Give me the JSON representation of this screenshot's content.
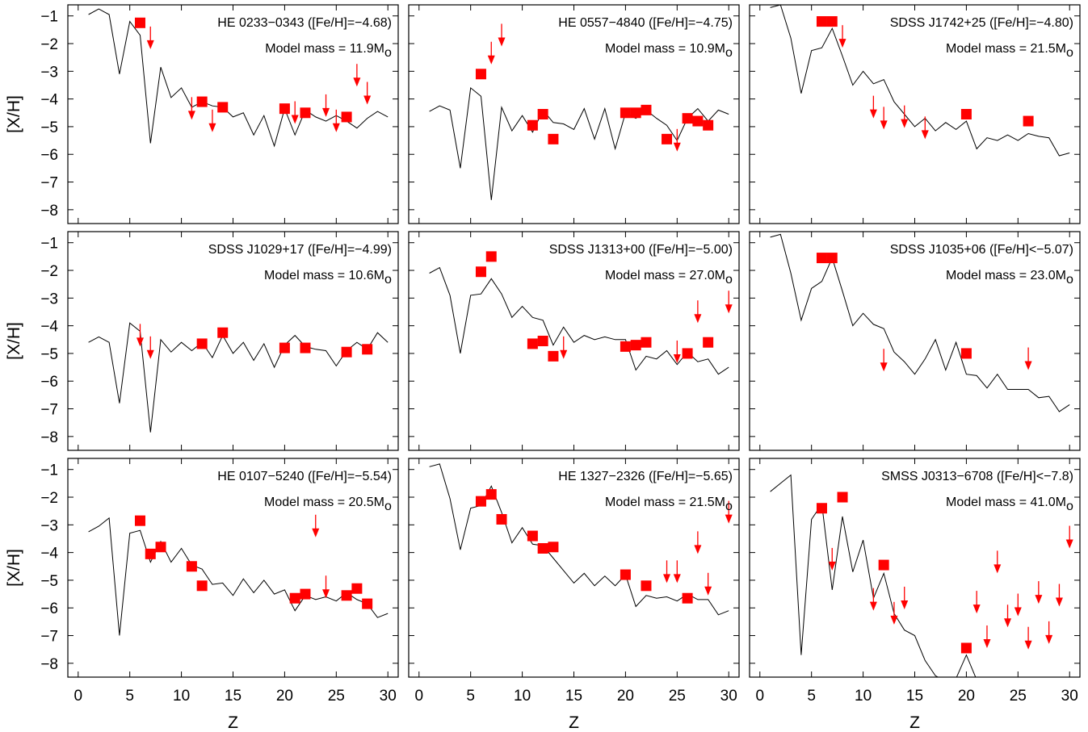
{
  "figure": {
    "xlabel": "Z",
    "ylabel": "[X/H]",
    "xlim": [
      -1,
      31
    ],
    "ylim": [
      -8.5,
      -0.6
    ],
    "xticks": [
      "0",
      "5",
      "10",
      "15",
      "20",
      "25",
      "30"
    ],
    "yticks": [
      "-1",
      "-2",
      "-3",
      "-4",
      "-5",
      "-6",
      "-7",
      "-8"
    ],
    "marker_color": "#ff0000",
    "line_color": "#000000"
  },
  "chart_data": [
    {
      "type": "scatter",
      "star": "HE 0233−0343 ([Fe/H]=−4.68)",
      "mass_prefix": "Model mass = 11.9M",
      "mass_sub": "o",
      "model_line": {
        "x": [
          1,
          2,
          3,
          4,
          5,
          6,
          7,
          8,
          9,
          10,
          11,
          12,
          13,
          14,
          15,
          16,
          17,
          18,
          19,
          20,
          21,
          22,
          23,
          24,
          25,
          26,
          27,
          28,
          29,
          30
        ],
        "y": [
          -0.95,
          -0.75,
          -0.95,
          -3.1,
          -1.2,
          -1.7,
          -5.6,
          -2.85,
          -3.95,
          -3.6,
          -4.3,
          -4.1,
          -4.25,
          -4.3,
          -4.65,
          -4.5,
          -5.3,
          -4.6,
          -5.7,
          -4.35,
          -5.3,
          -4.4,
          -4.65,
          -4.8,
          -4.6,
          -4.8,
          -5.05,
          -4.7,
          -4.45,
          -4.65
        ]
      },
      "detections": {
        "x": [
          6,
          12,
          14,
          20,
          22,
          26
        ],
        "y": [
          -1.25,
          -4.1,
          -4.3,
          -4.35,
          -4.5,
          -4.65
        ]
      },
      "upper_limits": {
        "x": [
          7,
          11,
          13,
          21,
          24,
          25,
          27,
          28
        ],
        "y": [
          -2.2,
          -4.75,
          -5.2,
          -4.9,
          -4.65,
          -5.2,
          -3.55,
          -4.2
        ]
      }
    },
    {
      "type": "scatter",
      "star": "HE 0557−4840 ([Fe/H]=−4.75)",
      "mass_prefix": "Model mass = 10.9M",
      "mass_sub": "o",
      "model_line": {
        "x": [
          1,
          2,
          3,
          4,
          5,
          6,
          7,
          8,
          9,
          10,
          11,
          12,
          13,
          14,
          15,
          16,
          17,
          18,
          19,
          20,
          21,
          22,
          23,
          24,
          25,
          26,
          27,
          28,
          29,
          30
        ],
        "y": [
          -4.45,
          -4.25,
          -4.4,
          -6.5,
          -3.6,
          -3.9,
          -7.65,
          -4.3,
          -5.15,
          -4.6,
          -5.2,
          -4.4,
          -4.85,
          -4.9,
          -5.1,
          -4.35,
          -5.45,
          -4.35,
          -5.8,
          -4.5,
          -4.7,
          -4.4,
          -4.7,
          -4.95,
          -5.5,
          -4.7,
          -4.35,
          -4.8,
          -4.4,
          -4.55
        ]
      },
      "detections": {
        "x": [
          6,
          11,
          12,
          13,
          20,
          21,
          22,
          24,
          26,
          27,
          28
        ],
        "y": [
          -3.1,
          -4.95,
          -4.55,
          -5.45,
          -4.5,
          -4.5,
          -4.4,
          -5.45,
          -4.7,
          -4.8,
          -4.95
        ]
      },
      "upper_limits": {
        "x": [
          7,
          8,
          25
        ],
        "y": [
          -2.75,
          -2.1,
          -5.9
        ]
      }
    },
    {
      "type": "scatter",
      "star": "SDSS J1742+25 ([Fe/H]=−4.80)",
      "mass_prefix": "Model mass = 21.5M",
      "mass_sub": "o",
      "model_line": {
        "x": [
          1,
          2,
          3,
          4,
          5,
          6,
          7,
          8,
          9,
          10,
          11,
          12,
          13,
          14,
          15,
          16,
          17,
          18,
          19,
          20,
          21,
          22,
          23,
          24,
          25,
          26,
          27,
          28,
          29,
          30
        ],
        "y": [
          -0.7,
          -0.6,
          -1.8,
          -3.8,
          -2.25,
          -2.15,
          -1.45,
          -2.45,
          -3.5,
          -3.0,
          -3.45,
          -3.3,
          -4.1,
          -4.55,
          -5.0,
          -4.7,
          -5.15,
          -4.85,
          -5.1,
          -4.8,
          -5.8,
          -5.4,
          -5.5,
          -5.3,
          -5.5,
          -5.25,
          -5.35,
          -5.4,
          -6.05,
          -5.95
        ]
      },
      "detections": {
        "x": [
          6,
          7,
          20,
          26
        ],
        "y": [
          -1.2,
          -1.2,
          -4.55,
          -4.8
        ]
      },
      "upper_limits": {
        "x": [
          8,
          11,
          12,
          14,
          16
        ],
        "y": [
          -2.15,
          -4.7,
          -5.1,
          -5.05,
          -5.45
        ]
      }
    },
    {
      "type": "scatter",
      "star": "SDSS J1029+17 ([Fe/H]=−4.99)",
      "mass_prefix": "Model mass = 10.6M",
      "mass_sub": "o",
      "model_line": {
        "x": [
          1,
          2,
          3,
          4,
          5,
          6,
          7,
          8,
          9,
          10,
          11,
          12,
          13,
          14,
          15,
          16,
          17,
          18,
          19,
          20,
          21,
          22,
          23,
          24,
          25,
          26,
          27,
          28,
          29,
          30
        ],
        "y": [
          -4.6,
          -4.4,
          -4.6,
          -6.8,
          -3.9,
          -4.2,
          -7.85,
          -4.5,
          -4.95,
          -4.6,
          -4.9,
          -4.6,
          -5.15,
          -4.35,
          -5.0,
          -4.6,
          -5.25,
          -4.65,
          -5.5,
          -4.7,
          -4.35,
          -4.75,
          -4.85,
          -4.9,
          -5.45,
          -4.9,
          -4.6,
          -4.85,
          -4.25,
          -4.6
        ]
      },
      "detections": {
        "x": [
          12,
          14,
          20,
          22,
          26,
          28
        ],
        "y": [
          -4.65,
          -4.25,
          -4.8,
          -4.8,
          -4.95,
          -4.85
        ]
      },
      "upper_limits": {
        "x": [
          6,
          7
        ],
        "y": [
          -4.75,
          -5.2
        ]
      }
    },
    {
      "type": "scatter",
      "star": "SDSS J1313+00 ([Fe/H]=−5.00)",
      "mass_prefix": "Model mass = 27.0M",
      "mass_sub": "o",
      "model_line": {
        "x": [
          1,
          2,
          3,
          4,
          5,
          6,
          7,
          8,
          9,
          10,
          11,
          12,
          13,
          14,
          15,
          16,
          17,
          18,
          19,
          20,
          21,
          22,
          23,
          24,
          25,
          26,
          27,
          28,
          29,
          30
        ],
        "y": [
          -2.1,
          -1.9,
          -2.9,
          -5.0,
          -2.9,
          -2.85,
          -2.3,
          -2.85,
          -3.7,
          -3.3,
          -3.7,
          -3.8,
          -4.7,
          -4.05,
          -4.6,
          -4.35,
          -4.5,
          -4.4,
          -4.5,
          -4.5,
          -5.6,
          -5.1,
          -5.2,
          -4.9,
          -5.4,
          -4.95,
          -5.3,
          -5.2,
          -5.75,
          -5.5
        ]
      },
      "detections": {
        "x": [
          6,
          7,
          11,
          12,
          13,
          20,
          21,
          22,
          26,
          28
        ],
        "y": [
          -2.05,
          -1.5,
          -4.65,
          -4.55,
          -5.1,
          -4.75,
          -4.7,
          -4.6,
          -5.0,
          -4.6
        ]
      },
      "upper_limits": {
        "x": [
          14,
          25,
          27,
          30
        ],
        "y": [
          -5.2,
          -5.35,
          -3.9,
          -3.55
        ]
      }
    },
    {
      "type": "scatter",
      "star": "SDSS J1035+06 ([Fe/H]<−5.07)",
      "mass_prefix": "Model mass = 23.0M",
      "mass_sub": "o",
      "model_line": {
        "x": [
          1,
          2,
          3,
          4,
          5,
          6,
          7,
          8,
          9,
          10,
          11,
          12,
          13,
          14,
          15,
          16,
          17,
          18,
          19,
          20,
          21,
          22,
          23,
          24,
          25,
          26,
          27,
          28,
          29,
          30
        ],
        "y": [
          -0.8,
          -0.7,
          -2.1,
          -3.8,
          -2.65,
          -2.4,
          -1.55,
          -2.75,
          -4.0,
          -3.55,
          -3.95,
          -4.1,
          -4.95,
          -5.3,
          -5.75,
          -5.2,
          -4.5,
          -5.6,
          -4.6,
          -5.75,
          -5.8,
          -6.25,
          -5.75,
          -6.3,
          -6.3,
          -6.3,
          -6.6,
          -6.55,
          -7.1,
          -6.85
        ]
      },
      "detections": {
        "x": [
          6,
          7,
          20
        ],
        "y": [
          -1.55,
          -1.55,
          -5.0
        ]
      },
      "upper_limits": {
        "x": [
          12,
          26
        ],
        "y": [
          -5.65,
          -5.6
        ]
      }
    },
    {
      "type": "scatter",
      "star": "HE 0107−5240 ([Fe/H]=−5.54)",
      "mass_prefix": "Model mass = 20.5M",
      "mass_sub": "o",
      "model_line": {
        "x": [
          1,
          2,
          3,
          4,
          5,
          6,
          7,
          8,
          9,
          10,
          11,
          12,
          13,
          14,
          15,
          16,
          17,
          18,
          19,
          20,
          21,
          22,
          23,
          24,
          25,
          26,
          27,
          28,
          29,
          30
        ],
        "y": [
          -3.25,
          -3.05,
          -2.75,
          -7.0,
          -3.3,
          -3.2,
          -4.35,
          -3.6,
          -4.35,
          -3.85,
          -4.45,
          -4.6,
          -5.15,
          -5.1,
          -5.55,
          -4.95,
          -5.45,
          -5.0,
          -5.5,
          -5.35,
          -6.1,
          -5.55,
          -5.7,
          -5.6,
          -5.75,
          -5.45,
          -5.7,
          -5.85,
          -6.35,
          -6.2
        ]
      },
      "detections": {
        "x": [
          6,
          7,
          8,
          11,
          12,
          21,
          22,
          26,
          27,
          28
        ],
        "y": [
          -2.85,
          -4.05,
          -3.8,
          -4.5,
          -5.2,
          -5.65,
          -5.5,
          -5.55,
          -5.3,
          -5.85
        ]
      },
      "upper_limits": {
        "x": [
          23,
          24
        ],
        "y": [
          -3.45,
          -5.65
        ]
      }
    },
    {
      "type": "scatter",
      "star": "HE 1327−2326 ([Fe/H]=−5.65)",
      "mass_prefix": "Model mass = 21.5M",
      "mass_sub": "o",
      "model_line": {
        "x": [
          1,
          2,
          3,
          4,
          5,
          6,
          7,
          8,
          9,
          10,
          11,
          12,
          13,
          14,
          15,
          16,
          17,
          18,
          19,
          20,
          21,
          22,
          23,
          24,
          25,
          26,
          27,
          28,
          29,
          30
        ],
        "y": [
          -0.9,
          -0.8,
          -2.05,
          -3.9,
          -2.4,
          -2.3,
          -1.6,
          -2.55,
          -3.65,
          -3.1,
          -3.7,
          -3.75,
          -4.2,
          -4.65,
          -5.1,
          -4.75,
          -5.2,
          -4.85,
          -5.2,
          -4.8,
          -5.95,
          -5.55,
          -5.65,
          -5.6,
          -5.75,
          -5.5,
          -5.7,
          -5.7,
          -6.25,
          -6.1
        ]
      },
      "detections": {
        "x": [
          6,
          7,
          8,
          11,
          12,
          13,
          20,
          22,
          26
        ],
        "y": [
          -2.15,
          -1.9,
          -2.8,
          -3.4,
          -3.85,
          -3.8,
          -4.8,
          -5.2,
          -5.65
        ]
      },
      "upper_limits": {
        "x": [
          24,
          25,
          27,
          28,
          30
        ],
        "y": [
          -5.1,
          -5.1,
          -4.05,
          -5.55,
          -2.95
        ]
      }
    },
    {
      "type": "scatter",
      "star": "SMSS J0313−6708 ([Fe/H]<−7.8)",
      "mass_prefix": "Model mass = 41.0M",
      "mass_sub": "o",
      "model_line": {
        "x": [
          1,
          2,
          3,
          4,
          5,
          6,
          7,
          8,
          9,
          10,
          11,
          12,
          13,
          14,
          15,
          16,
          17,
          18,
          19,
          20,
          21
        ],
        "y": [
          -1.8,
          -1.5,
          -1.2,
          -7.7,
          -2.8,
          -2.25,
          -5.35,
          -2.7,
          -4.7,
          -3.55,
          -5.65,
          -4.75,
          -6.2,
          -6.8,
          -7.0,
          -7.9,
          -8.45,
          -8.65,
          -8.55,
          -7.7,
          -8.6
        ]
      },
      "detections": {
        "x": [
          6,
          8,
          12,
          20
        ],
        "y": [
          -2.4,
          -2.0,
          -4.45,
          -7.45
        ]
      },
      "upper_limits": {
        "x": [
          7,
          11,
          13,
          14,
          21,
          22,
          23,
          24,
          25,
          26,
          27,
          28,
          29,
          30
        ],
        "y": [
          -4.65,
          -6.1,
          -6.6,
          -6.05,
          -6.2,
          -7.45,
          -4.75,
          -6.7,
          -6.3,
          -7.5,
          -5.85,
          -7.3,
          -5.95,
          -3.85
        ]
      }
    }
  ]
}
